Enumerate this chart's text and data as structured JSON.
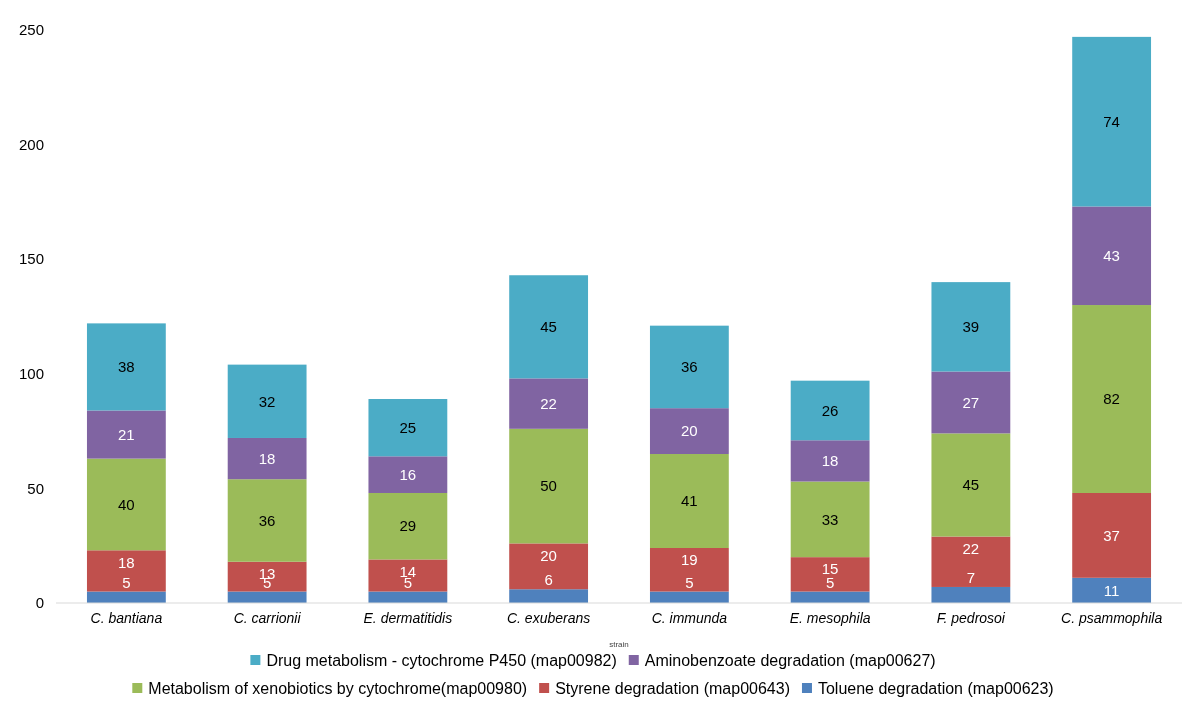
{
  "chart_data": {
    "type": "bar",
    "stacked": true,
    "xlabel": "strain",
    "categories": [
      "C. bantiana",
      "C. carrionii",
      "E. dermatitidis",
      "C. exuberans",
      "C. immunda",
      "E. mesophila",
      "F. pedrosoi",
      "C. psammophila"
    ],
    "series": [
      {
        "name": "Toluene degradation (map00623)",
        "color": "#4f81bd",
        "values": [
          5,
          5,
          5,
          6,
          5,
          5,
          7,
          11
        ]
      },
      {
        "name": "Styrene degradation (map00643)",
        "color": "#c0504d",
        "values": [
          18,
          13,
          14,
          20,
          19,
          15,
          22,
          37
        ]
      },
      {
        "name": "Metabolism of xenobiotics by cytochrome(map00980)",
        "color": "#9bbb59",
        "values": [
          40,
          36,
          29,
          50,
          41,
          33,
          45,
          82
        ]
      },
      {
        "name": "Aminobenzoate degradation (map00627)",
        "color": "#8064a2",
        "values": [
          21,
          18,
          16,
          22,
          20,
          18,
          27,
          43
        ]
      },
      {
        "name": "Drug metabolism - cytochrome P450 (map00982)",
        "color": "#4bacc6",
        "values": [
          38,
          32,
          25,
          45,
          36,
          26,
          39,
          74
        ]
      }
    ],
    "ylim": [
      0,
      250
    ],
    "yticks": [
      0,
      50,
      100,
      150,
      200,
      250
    ],
    "data_labels": true,
    "legend": "bottom",
    "grid": false
  }
}
